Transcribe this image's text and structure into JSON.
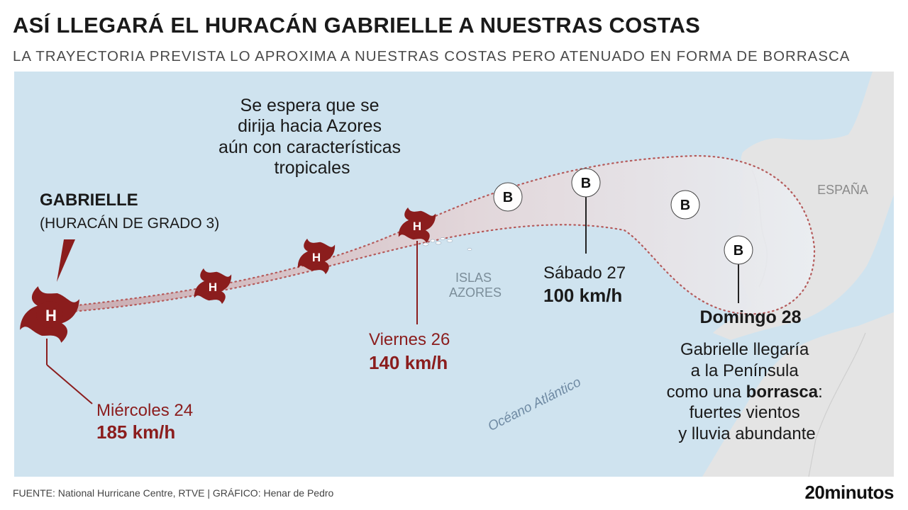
{
  "header": {
    "title": "ASÍ LLEGARÁ EL HURACÁN GABRIELLE A NUESTRAS COSTAS",
    "subtitle": "LA TRAYECTORIA PREVISTA LO APROXIMA A NUESTRAS COSTAS PERO ATENUADO EN FORMA DE BORRASCA"
  },
  "map": {
    "colors": {
      "sea": "#cfe3ef",
      "land": "#e4e4e4",
      "accent": "#8b1d1d",
      "cone": "#e6d6d8"
    },
    "note": [
      "Se espera que se",
      "dirija hacia Azores",
      "aún con características",
      "tropicales"
    ],
    "storm_name": "GABRIELLE",
    "storm_category": "(HURACÁN DE GRADO 3)",
    "hurricane_symbol": "H",
    "storm_symbol": "B",
    "islands_label": [
      "ISLAS",
      "AZORES"
    ],
    "country_label": "ESPAÑA",
    "ocean_label": "Océano Atlántico",
    "points": {
      "wed": {
        "day": "Miércoles 24",
        "speed": "185 km/h"
      },
      "fri": {
        "day": "Viernes 26",
        "speed": "140 km/h"
      },
      "sat": {
        "day": "Sábado 27",
        "speed": "100 km/h"
      },
      "sun": {
        "day": "Domingo 28"
      }
    },
    "arrival": {
      "line1": "Gabrielle llegaría",
      "line2": "a la Península",
      "line3_pre": "como una ",
      "line3_bold": "borrasca",
      "line3_post": ":",
      "line4": "fuertes vientos",
      "line5": "y lluvia abundante"
    }
  },
  "footer": {
    "source": "FUENTE: National Hurricane Centre, RTVE |  GRÁFICO: Henar de Pedro",
    "brand": "20minutos"
  }
}
